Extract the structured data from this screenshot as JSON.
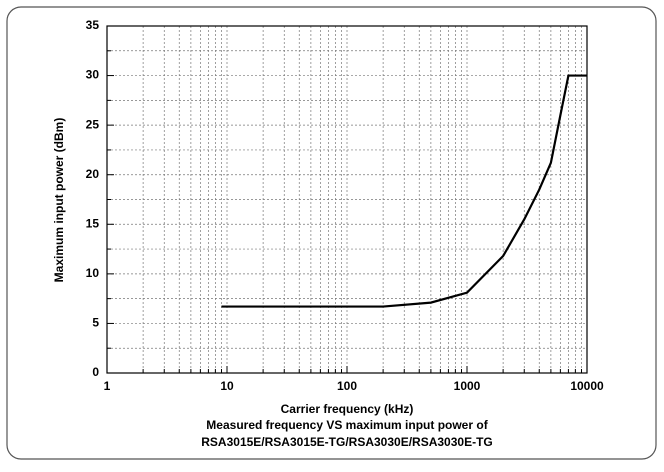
{
  "chart_data": {
    "type": "line",
    "xlabel": "Carrier frequency (kHz)",
    "ylabel": "Maximum input power (dBm)",
    "caption": [
      "Measured frequency VS maximum input power of",
      "RSA3015E/RSA3015E-TG/RSA3030E/RSA3030E-TG"
    ],
    "x": [
      9,
      200,
      500,
      1000,
      2000,
      3000,
      4000,
      5000,
      6000,
      7000,
      10000
    ],
    "series": [
      {
        "color": "#000000",
        "values": [
          6.7,
          6.7,
          7.1,
          8.1,
          11.8,
          15.5,
          18.5,
          21.2,
          26,
          30,
          30
        ]
      }
    ],
    "xlim": [
      1,
      10000
    ],
    "xticks": [
      1,
      10,
      100,
      1000,
      10000
    ],
    "xscale": "log",
    "ylim": [
      0,
      35
    ],
    "yticks": [
      0,
      5,
      10,
      15,
      20,
      25,
      30,
      35
    ],
    "grid": true,
    "minor_grid": true
  }
}
